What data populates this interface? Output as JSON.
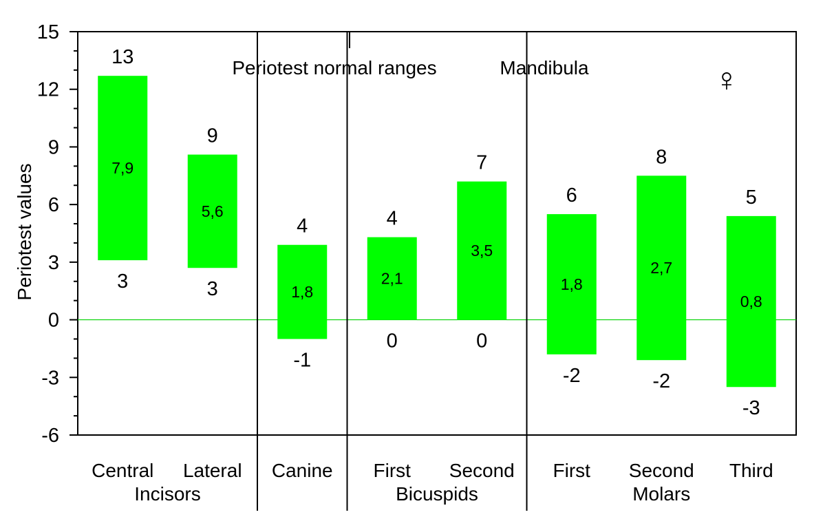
{
  "chart_data": {
    "type": "bar",
    "subtype": "floating-range",
    "title": "Periotest normal ranges",
    "subtitle": "Mandibula",
    "symbol": "♀",
    "ylabel": "Periotest values",
    "ylim": [
      -6,
      15
    ],
    "yticks": [
      15,
      12,
      9,
      6,
      3,
      0,
      -3,
      -6
    ],
    "bar_color": "#00ff00",
    "zero_line_color": "#00d200",
    "categories": [
      "Central",
      "Lateral",
      "Canine",
      "First",
      "Second",
      "First",
      "Second",
      "Third"
    ],
    "groups": [
      {
        "label": "Incisors",
        "members": [
          0,
          1
        ]
      },
      {
        "label": "",
        "members": [
          2
        ]
      },
      {
        "label": "Bicuspids",
        "members": [
          3,
          4
        ]
      },
      {
        "label": "Molars",
        "members": [
          5,
          6,
          7
        ]
      }
    ],
    "series": [
      {
        "low": [
          3.1,
          2.7,
          -1.0,
          0.0,
          0.0,
          -1.8,
          -2.1,
          -3.5
        ],
        "high": [
          12.7,
          8.6,
          3.9,
          4.3,
          7.2,
          5.5,
          7.5,
          5.4
        ],
        "high_labels": [
          "13",
          "9",
          "4",
          "4",
          "7",
          "6",
          "8",
          "5"
        ],
        "low_labels": [
          "3",
          "3",
          "-1",
          "0",
          "0",
          "-2",
          "-2",
          "-3"
        ],
        "mean_labels": [
          "7,9",
          "5,6",
          "1,8",
          "2,1",
          "3,5",
          "1,8",
          "2,7",
          "0,8"
        ]
      }
    ]
  }
}
